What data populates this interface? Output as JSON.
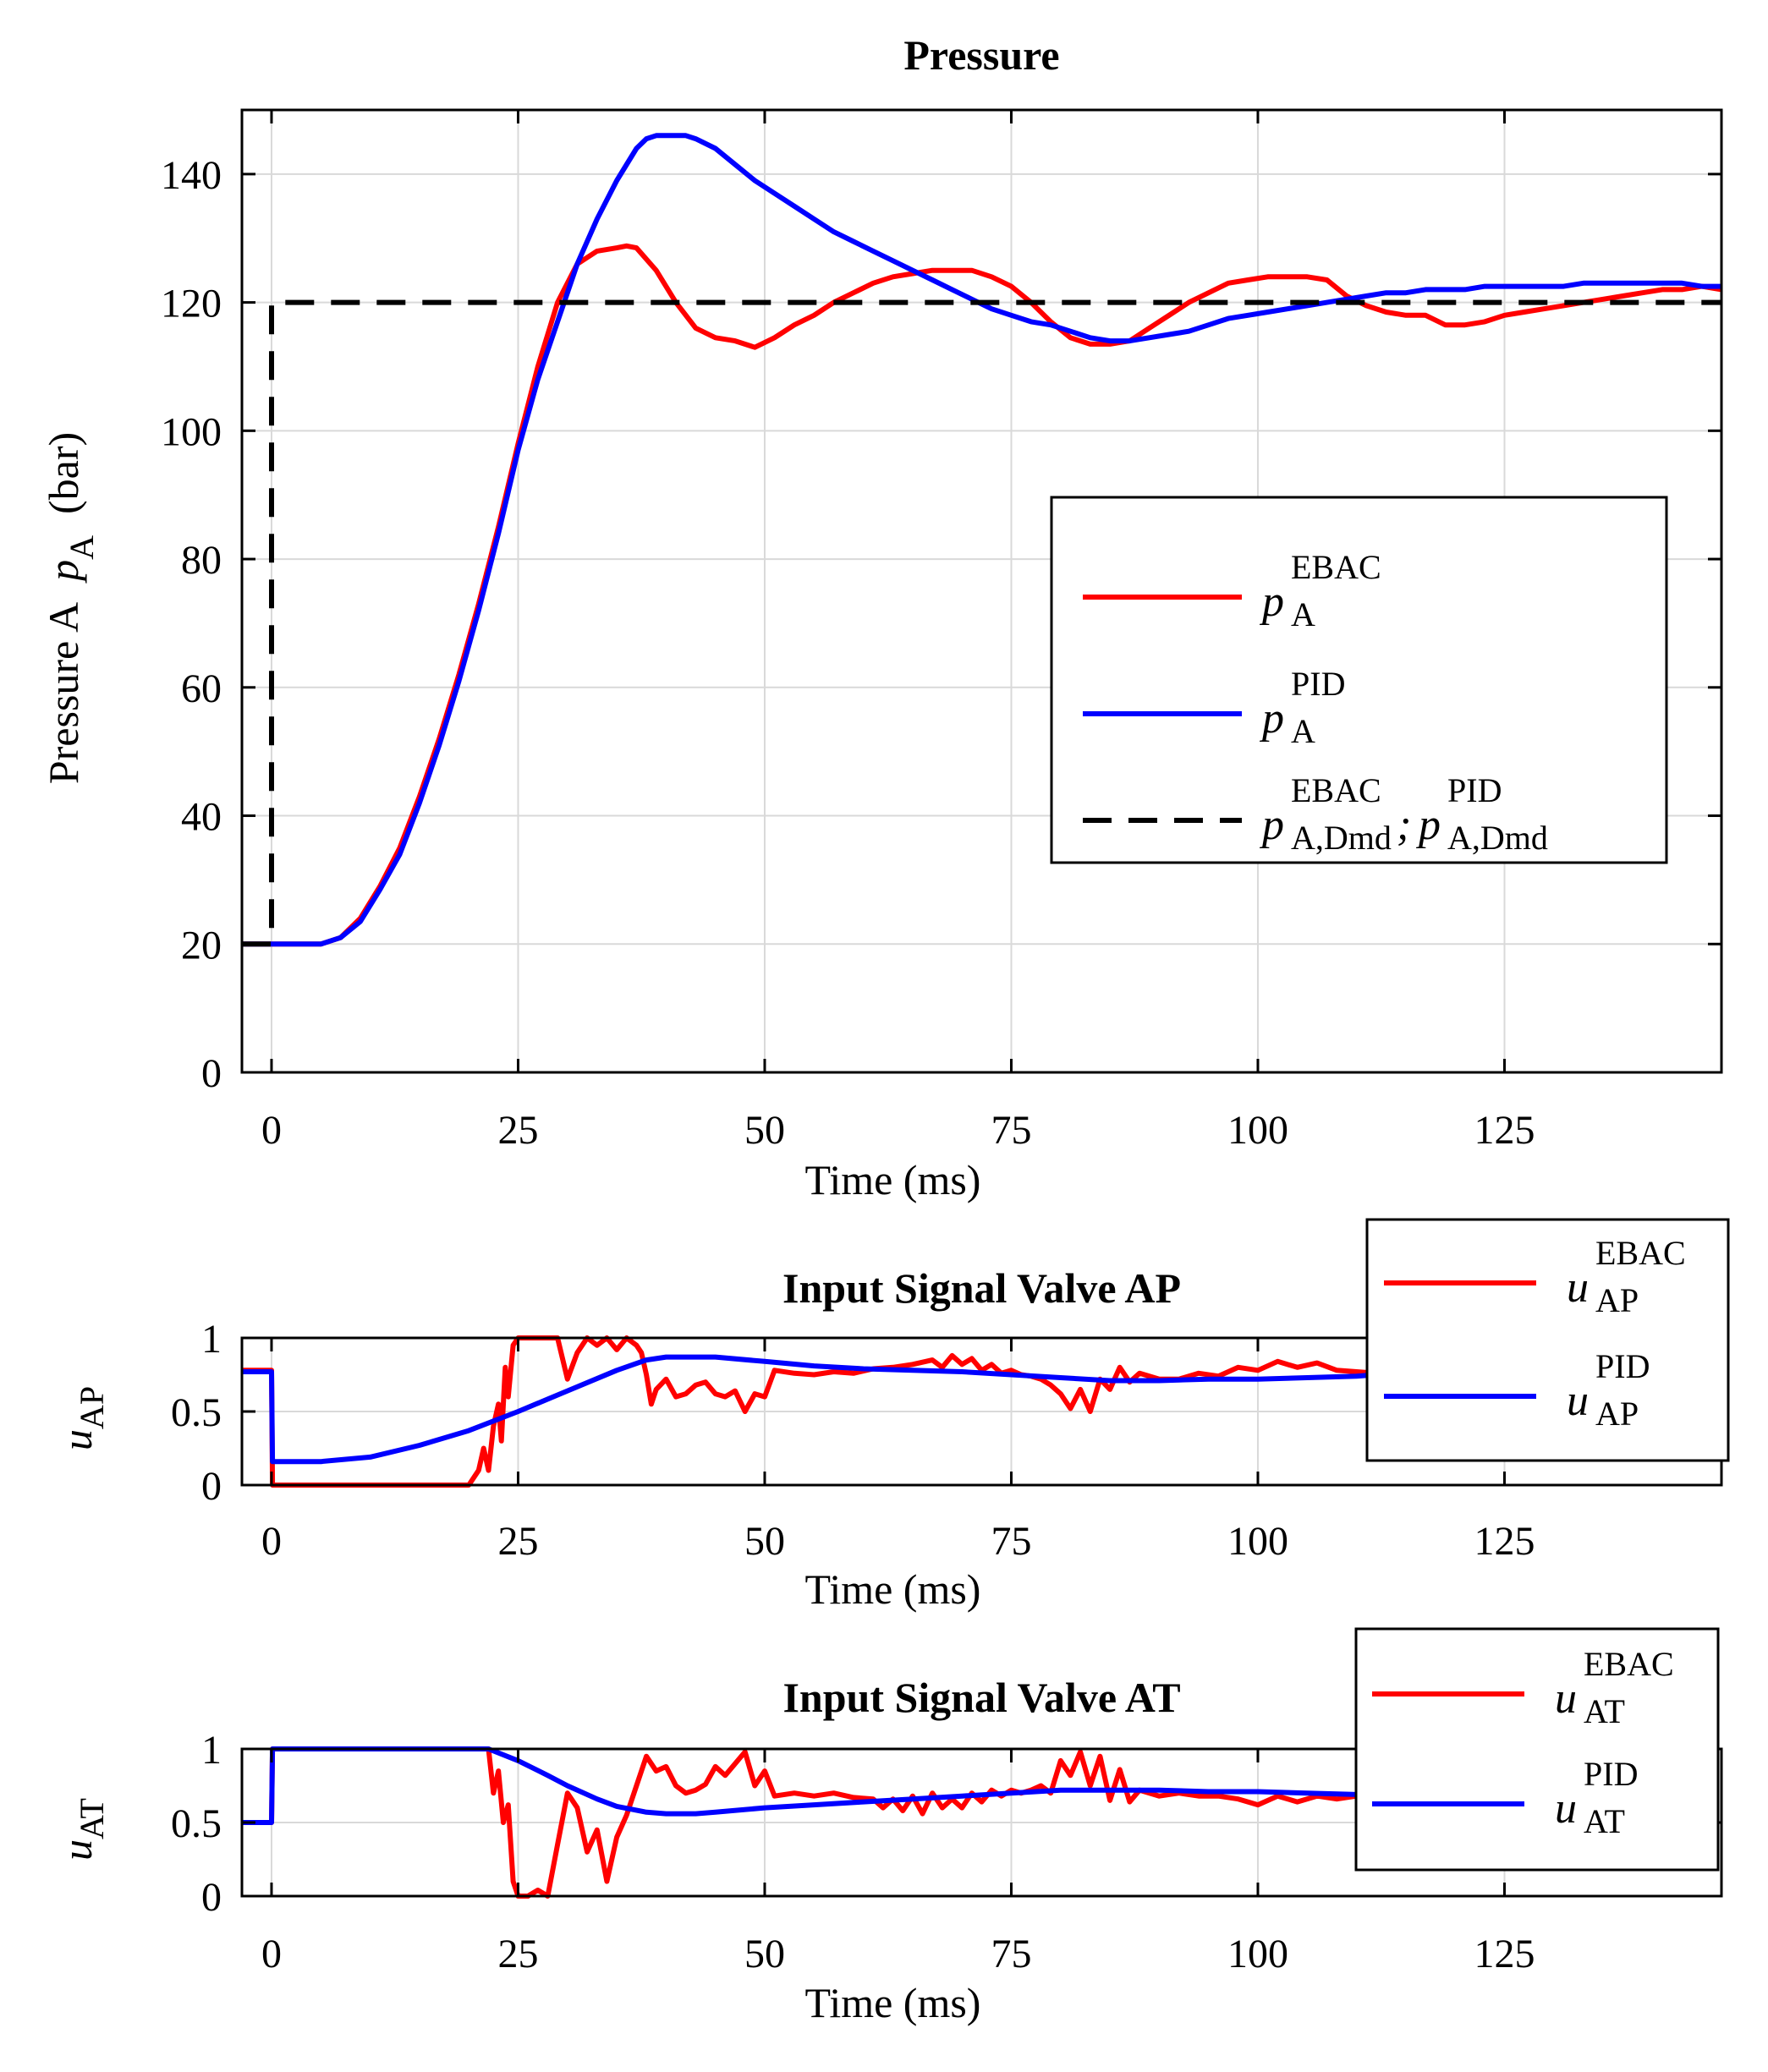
{
  "colors": {
    "ebac": "#ff0000",
    "pid": "#0000ff",
    "demand": "#000000",
    "grid": "#d9d9d9",
    "axis": "#000000"
  },
  "chart_data": [
    {
      "type": "line",
      "title": "Pressure",
      "xlabel": "Time  (ms)",
      "ylabel": "Pressure A",
      "ylabel_symbol": "p",
      "ylabel_symbol_sub": "A",
      "ylabel_unit": "(bar)",
      "xlim": [
        -3,
        147
      ],
      "ylim": [
        0,
        150
      ],
      "xticks": [
        0,
        25,
        50,
        75,
        100,
        125
      ],
      "yticks": [
        0,
        20,
        40,
        60,
        80,
        100,
        120,
        140
      ],
      "grid": true,
      "legend_position": "center-right",
      "series": [
        {
          "name": "p_A^EBAC",
          "legend_base": "p",
          "legend_sup": "EBAC",
          "legend_sub": "A",
          "color": "#ff0000",
          "style": "solid",
          "x": [
            -3,
            0,
            2,
            5,
            7,
            9,
            11,
            13,
            15,
            17,
            19,
            21,
            23,
            25,
            27,
            29,
            30,
            31,
            33,
            35,
            36,
            37,
            39,
            41,
            43,
            45,
            47,
            49,
            51,
            53,
            55,
            57,
            59,
            61,
            63,
            65,
            67,
            69,
            71,
            73,
            75,
            77,
            79,
            81,
            83,
            85,
            87,
            89,
            91,
            93,
            95,
            97,
            99,
            101,
            103,
            105,
            107,
            109,
            111,
            113,
            115,
            117,
            119,
            121,
            123,
            125,
            127,
            129,
            131,
            133,
            135,
            137,
            139,
            141,
            143,
            145,
            147
          ],
          "y": [
            20,
            20,
            20,
            20,
            21,
            24,
            29,
            35,
            43,
            52,
            62,
            73,
            85,
            98,
            110,
            120,
            123,
            126,
            128,
            128.5,
            128.8,
            128.5,
            125,
            120,
            116,
            114.5,
            114,
            113,
            114.5,
            116.5,
            118,
            120,
            121.5,
            123,
            124,
            124.5,
            125,
            125,
            125,
            124,
            122.5,
            120,
            117,
            114.5,
            113.5,
            113.5,
            114,
            116,
            118,
            120,
            121.5,
            123,
            123.5,
            124,
            124,
            124,
            123.5,
            121,
            119.5,
            118.5,
            118,
            118,
            116.5,
            116.5,
            117,
            118,
            118.5,
            119,
            119.5,
            120,
            120.5,
            121,
            121.5,
            122,
            122,
            122.5,
            122
          ]
        },
        {
          "name": "p_A^PID",
          "legend_base": "p",
          "legend_sup": "PID",
          "legend_sub": "A",
          "color": "#0000ff",
          "style": "solid",
          "x": [
            -3,
            0,
            2,
            5,
            7,
            9,
            11,
            13,
            15,
            17,
            19,
            21,
            23,
            25,
            27,
            29,
            31,
            33,
            35,
            37,
            38,
            39,
            41,
            42,
            43,
            45,
            47,
            49,
            51,
            53,
            55,
            57,
            59,
            61,
            63,
            65,
            67,
            69,
            71,
            73,
            75,
            77,
            79,
            81,
            83,
            85,
            87,
            89,
            91,
            93,
            95,
            97,
            99,
            101,
            103,
            105,
            107,
            109,
            111,
            113,
            115,
            117,
            119,
            121,
            123,
            125,
            127,
            129,
            131,
            133,
            135,
            137,
            139,
            141,
            143,
            145,
            147
          ],
          "y": [
            20,
            20,
            20,
            20,
            21,
            23.5,
            28.5,
            34,
            42,
            51,
            61,
            72,
            84,
            97,
            108,
            117,
            126,
            133,
            139,
            144,
            145.5,
            146,
            146,
            146,
            145.5,
            144,
            141.5,
            139,
            137,
            135,
            133,
            131,
            129.5,
            128,
            126.5,
            125,
            123.5,
            122,
            120.5,
            119,
            118,
            117,
            116.5,
            115.5,
            114.5,
            114,
            114,
            114.5,
            115,
            115.5,
            116.5,
            117.5,
            118,
            118.5,
            119,
            119.5,
            120,
            120.5,
            121,
            121.5,
            121.5,
            122,
            122,
            122,
            122.5,
            122.5,
            122.5,
            122.5,
            122.5,
            123,
            123,
            123,
            123,
            123,
            123,
            122.5,
            122.5
          ]
        },
        {
          "name": "demand",
          "legend_base": "p",
          "legend_sup": "EBAC",
          "legend_sub": "A,Dmd",
          "legend_base2": "p",
          "legend_sup2": "PID",
          "legend_sub2": "A,Dmd",
          "legend_sep": ";",
          "color": "#000000",
          "style": "dashed",
          "x": [
            -3,
            0,
            0,
            147
          ],
          "y": [
            20,
            20,
            120,
            120
          ]
        }
      ]
    },
    {
      "type": "line",
      "title": "Input Signal Valve AP",
      "xlabel": "Time  (ms)",
      "ylabel_symbol": "u",
      "ylabel_symbol_sub": "AP",
      "xlim": [
        -3,
        147
      ],
      "ylim": [
        0,
        1
      ],
      "xticks": [
        0,
        25,
        50,
        75,
        100,
        125
      ],
      "yticks": [
        0,
        0.5,
        1
      ],
      "ytick_labels": [
        "0",
        "0.5",
        "1"
      ],
      "grid": true,
      "legend_position": "top-right",
      "series": [
        {
          "name": "u_AP^EBAC",
          "legend_base": "u",
          "legend_sup": "EBAC",
          "legend_sub": "AP",
          "color": "#ff0000",
          "style": "solid",
          "x": [
            -3,
            0,
            0.1,
            5,
            10,
            15,
            20,
            21,
            21.5,
            22,
            22.5,
            23,
            23.3,
            23.7,
            24,
            24.5,
            25,
            26,
            28,
            29,
            30,
            31,
            32,
            33,
            34,
            35,
            36,
            37,
            37.5,
            38,
            38.5,
            39,
            40,
            41,
            42,
            43,
            44,
            45,
            46,
            47,
            48,
            49,
            50,
            51,
            53,
            55,
            57,
            59,
            61,
            63,
            65,
            67,
            68,
            69,
            70,
            71,
            72,
            73,
            74,
            75,
            76,
            77,
            78,
            79,
            80,
            81,
            82,
            83,
            84,
            85,
            86,
            87,
            88,
            90,
            92,
            94,
            96,
            98,
            100,
            102,
            104,
            106,
            108,
            110,
            112
          ],
          "y": [
            0.78,
            0.78,
            0,
            0,
            0,
            0,
            0,
            0.1,
            0.25,
            0.1,
            0.4,
            0.55,
            0.3,
            0.8,
            0.6,
            0.95,
            1,
            1,
            1,
            1,
            0.72,
            0.9,
            1,
            0.95,
            1,
            0.92,
            1,
            0.95,
            0.9,
            0.75,
            0.55,
            0.65,
            0.72,
            0.6,
            0.62,
            0.68,
            0.7,
            0.62,
            0.6,
            0.64,
            0.5,
            0.62,
            0.6,
            0.78,
            0.76,
            0.75,
            0.77,
            0.76,
            0.79,
            0.8,
            0.82,
            0.85,
            0.8,
            0.88,
            0.82,
            0.86,
            0.78,
            0.82,
            0.76,
            0.78,
            0.75,
            0.74,
            0.72,
            0.68,
            0.62,
            0.52,
            0.65,
            0.5,
            0.72,
            0.65,
            0.8,
            0.7,
            0.76,
            0.72,
            0.72,
            0.76,
            0.74,
            0.8,
            0.78,
            0.84,
            0.8,
            0.83,
            0.78,
            0.77,
            0.76
          ]
        },
        {
          "name": "u_AP^PID",
          "legend_base": "u",
          "legend_sup": "PID",
          "legend_sub": "AP",
          "color": "#0000ff",
          "style": "solid",
          "x": [
            -3,
            0,
            0.1,
            5,
            10,
            15,
            20,
            25,
            30,
            35,
            38,
            40,
            43,
            45,
            50,
            55,
            60,
            65,
            70,
            75,
            80,
            85,
            90,
            95,
            100,
            105,
            110,
            112
          ],
          "y": [
            0.77,
            0.77,
            0.16,
            0.16,
            0.19,
            0.27,
            0.37,
            0.5,
            0.64,
            0.78,
            0.85,
            0.87,
            0.87,
            0.87,
            0.84,
            0.81,
            0.79,
            0.78,
            0.77,
            0.75,
            0.73,
            0.71,
            0.71,
            0.72,
            0.72,
            0.73,
            0.74,
            0.75
          ]
        }
      ]
    },
    {
      "type": "line",
      "title": "Input Signal Valve AT",
      "xlabel": "Time  (ms)",
      "ylabel_symbol": "u",
      "ylabel_symbol_sub": "AT",
      "xlim": [
        -3,
        147
      ],
      "ylim": [
        0,
        1
      ],
      "xticks": [
        0,
        25,
        50,
        75,
        100,
        125
      ],
      "yticks": [
        0,
        0.5,
        1
      ],
      "ytick_labels": [
        "0",
        "0.5",
        "1"
      ],
      "grid": true,
      "legend_position": "top-right",
      "series": [
        {
          "name": "u_AT^EBAC",
          "legend_base": "u",
          "legend_sup": "EBAC",
          "legend_sub": "AT",
          "color": "#ff0000",
          "style": "solid",
          "x": [
            -3,
            0,
            0.1,
            5,
            10,
            15,
            20,
            22,
            22.5,
            23,
            23.5,
            24,
            24.5,
            25,
            26,
            27,
            28,
            29,
            30,
            31,
            32,
            33,
            34,
            35,
            36,
            37,
            38,
            39,
            40,
            41,
            42,
            43,
            44,
            45,
            46,
            47,
            48,
            49,
            50,
            51,
            53,
            55,
            57,
            59,
            61,
            62,
            63,
            64,
            65,
            66,
            67,
            68,
            69,
            70,
            71,
            72,
            73,
            74,
            75,
            76,
            77,
            78,
            79,
            80,
            81,
            82,
            83,
            84,
            85,
            86,
            87,
            88,
            90,
            92,
            94,
            96,
            98,
            100,
            102,
            104,
            106,
            108,
            110,
            112
          ],
          "y": [
            0.5,
            0.5,
            1,
            1,
            1,
            1,
            1,
            1,
            0.7,
            0.85,
            0.5,
            0.62,
            0.1,
            0,
            0,
            0.04,
            0,
            0.35,
            0.7,
            0.6,
            0.3,
            0.45,
            0.1,
            0.4,
            0.55,
            0.75,
            0.95,
            0.85,
            0.88,
            0.75,
            0.7,
            0.72,
            0.76,
            0.88,
            0.82,
            0.9,
            0.98,
            0.75,
            0.85,
            0.68,
            0.7,
            0.68,
            0.7,
            0.67,
            0.66,
            0.6,
            0.66,
            0.58,
            0.68,
            0.56,
            0.7,
            0.6,
            0.66,
            0.6,
            0.7,
            0.64,
            0.72,
            0.68,
            0.72,
            0.7,
            0.72,
            0.75,
            0.7,
            0.92,
            0.82,
            0.98,
            0.75,
            0.95,
            0.65,
            0.86,
            0.64,
            0.72,
            0.68,
            0.7,
            0.68,
            0.68,
            0.66,
            0.62,
            0.68,
            0.64,
            0.68,
            0.66,
            0.68,
            0.7
          ]
        },
        {
          "name": "u_AT^PID",
          "legend_base": "u",
          "legend_sup": "PID",
          "legend_sub": "AT",
          "color": "#0000ff",
          "style": "solid",
          "x": [
            -3,
            0,
            0.1,
            5,
            10,
            15,
            20,
            22,
            25,
            28,
            30,
            33,
            35,
            38,
            40,
            43,
            45,
            50,
            55,
            60,
            65,
            70,
            75,
            80,
            85,
            90,
            95,
            100,
            105,
            110,
            112
          ],
          "y": [
            0.5,
            0.5,
            1,
            1,
            1,
            1,
            1,
            1,
            0.92,
            0.82,
            0.75,
            0.66,
            0.61,
            0.57,
            0.56,
            0.56,
            0.57,
            0.6,
            0.62,
            0.64,
            0.66,
            0.68,
            0.7,
            0.72,
            0.72,
            0.72,
            0.71,
            0.71,
            0.7,
            0.69,
            0.69
          ]
        }
      ]
    }
  ]
}
